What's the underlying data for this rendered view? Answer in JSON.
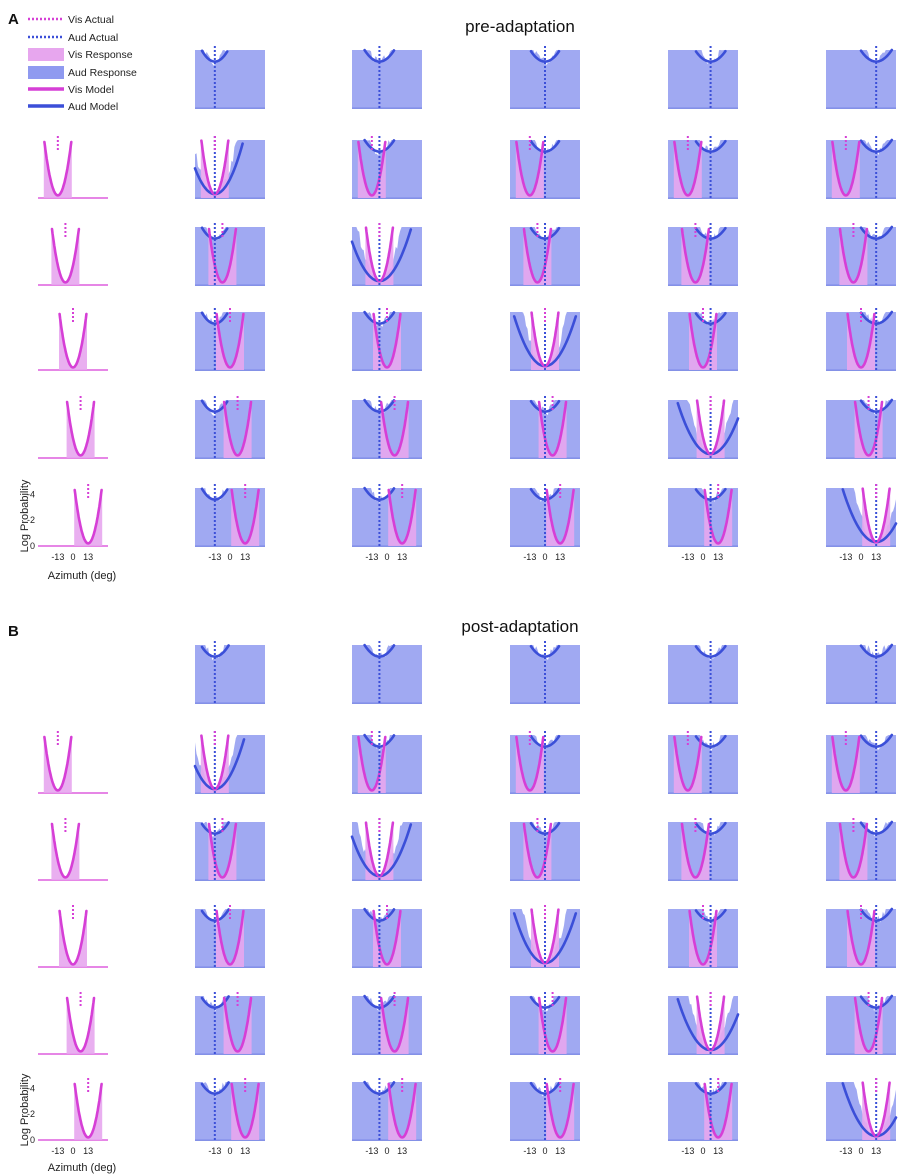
{
  "legend": {
    "items": [
      {
        "label": "Vis Actual",
        "style": "dotted",
        "color": "#d63fd6"
      },
      {
        "label": "Aud Actual",
        "style": "dotted",
        "color": "#3b4fd8"
      },
      {
        "label": "Vis Response",
        "style": "patch",
        "color": "#e7a6ee"
      },
      {
        "label": "Aud Response",
        "style": "patch",
        "color": "#8f9af0"
      },
      {
        "label": "Vis Model",
        "style": "line",
        "color": "#d63fd6"
      },
      {
        "label": "Aud Model",
        "style": "line",
        "color": "#3b4fd8"
      }
    ]
  },
  "colors": {
    "vis_line": "#d63fd6",
    "aud_line": "#3b4fd8",
    "vis_fill": "#e7a6ee",
    "aud_fill": "#8f9af0",
    "axis": "#3b4fd8"
  },
  "chart_data": [
    {
      "panel_letter": "A",
      "title": "pre-adaptation",
      "type": "line",
      "grid": "6x6 small multiples",
      "xlabel": "Azimuth (deg)",
      "ylabel": "Log Probability",
      "xticks": [
        "-13",
        "0",
        "13"
      ],
      "yticks": [
        "0",
        "-2",
        "-4"
      ],
      "ylim": [
        -4.5,
        0
      ],
      "xlim": [
        -30,
        30
      ],
      "auditory_locations": [
        null,
        -13,
        -6.5,
        0,
        6.5,
        13
      ],
      "visual_locations": [
        null,
        -13,
        -6.5,
        0,
        6.5,
        13
      ],
      "aud_widths": [
        null,
        8.5,
        9.5,
        9.5,
        10,
        10
      ]
    },
    {
      "panel_letter": "B",
      "title": "post-adaptation",
      "type": "line",
      "grid": "6x6 small multiples",
      "xlabel": "Azimuth (deg)",
      "ylabel": "Log Probability",
      "xticks": [
        "-13",
        "0",
        "13"
      ],
      "yticks": [
        "0",
        "-2",
        "-4"
      ],
      "ylim": [
        -4.5,
        0
      ],
      "xlim": [
        -30,
        30
      ],
      "auditory_locations": [
        null,
        -13,
        -6.5,
        0,
        6.5,
        13
      ],
      "visual_locations": [
        null,
        -13,
        -6.5,
        0,
        6.5,
        13
      ],
      "aud_widths": [
        null,
        9,
        9.5,
        9.5,
        10,
        10
      ]
    }
  ]
}
